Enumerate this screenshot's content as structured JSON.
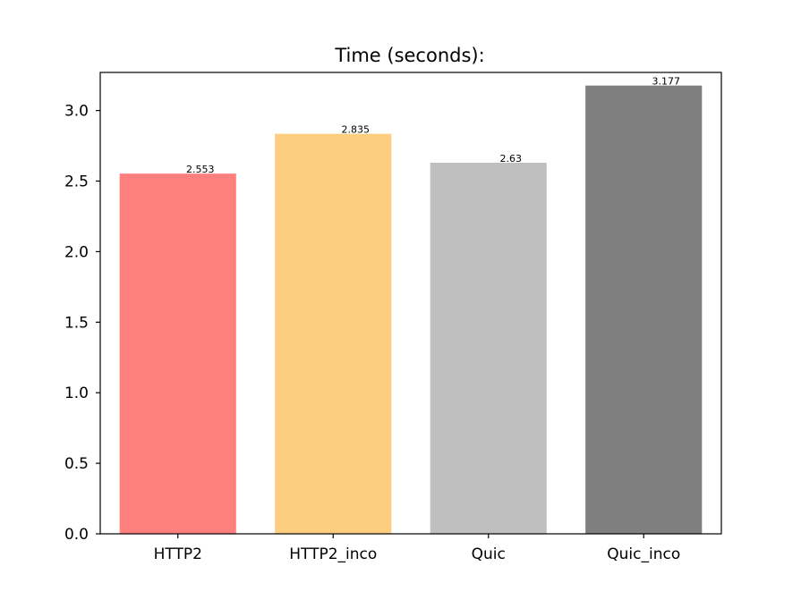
{
  "chart_data": {
    "type": "bar",
    "title": "Time (seconds):",
    "xlabel": "",
    "ylabel": "",
    "categories": [
      "HTTP2",
      "HTTP2_inco",
      "Quic",
      "Quic_inco"
    ],
    "values": [
      2.553,
      2.835,
      2.63,
      3.177
    ],
    "value_labels": [
      "2.553",
      "2.835",
      "2.63",
      "3.177"
    ],
    "colors": [
      "#ff7f7f",
      "#fdce80",
      "#bfbfbf",
      "#7f7f7f"
    ],
    "ylim": [
      0,
      3.27
    ],
    "yticks": [
      0.0,
      0.5,
      1.0,
      1.5,
      2.0,
      2.5,
      3.0
    ],
    "ytick_labels": [
      "0.0",
      "0.5",
      "1.0",
      "1.5",
      "2.0",
      "2.5",
      "3.0"
    ],
    "grid": false,
    "legend": "none"
  }
}
